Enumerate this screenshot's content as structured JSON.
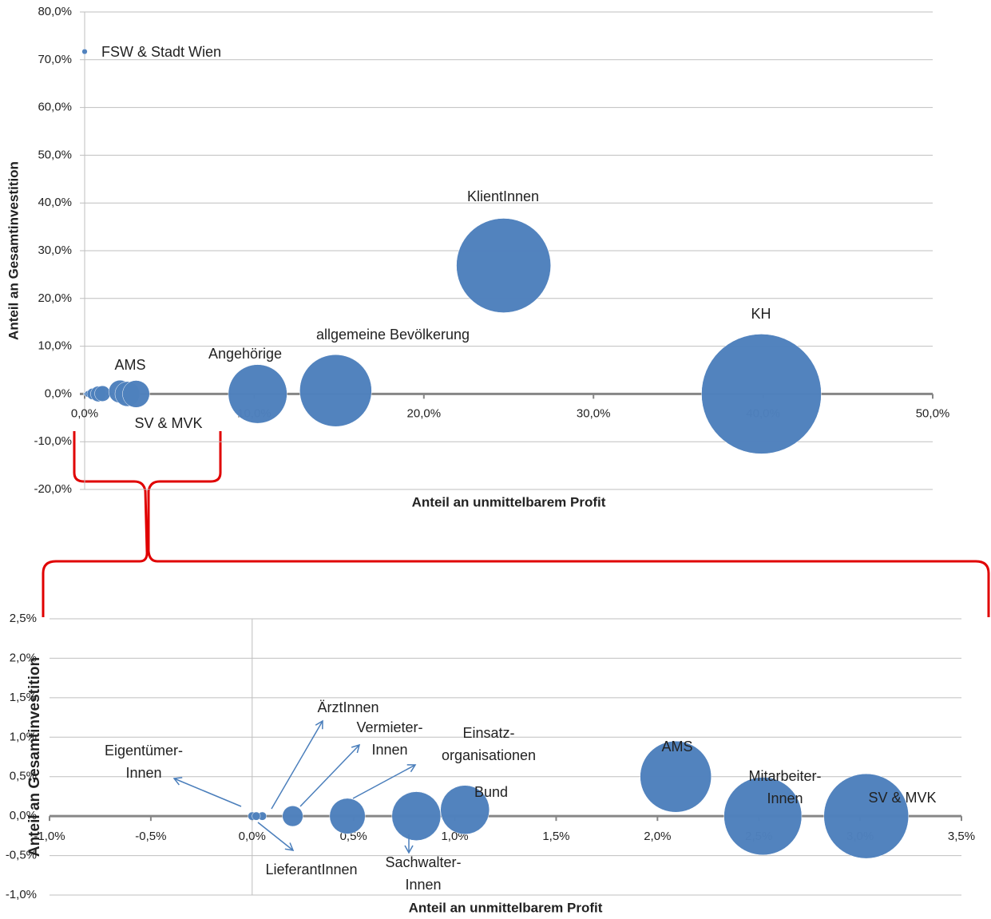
{
  "chart_data": [
    {
      "type": "bubble",
      "x_label": "Anteil an unmittelbarem Profit",
      "y_label": "Anteil an Gesamtinvestition",
      "color": "#4f81bd",
      "grid": true,
      "xlim": [
        0,
        50
      ],
      "ylim": [
        -20,
        80
      ],
      "xticks": [
        {
          "value": 0,
          "label": "0,0%"
        },
        {
          "value": 10,
          "label": "10,0%"
        },
        {
          "value": 20,
          "label": "20,0%"
        },
        {
          "value": 30,
          "label": "30,0%"
        },
        {
          "value": 40,
          "label": "40,0%"
        },
        {
          "value": 50,
          "label": "50,0%"
        }
      ],
      "yticks": [
        {
          "value": -20,
          "label": "-20,0%"
        },
        {
          "value": -10,
          "label": "-10,0%"
        },
        {
          "value": 0,
          "label": "0,0%"
        },
        {
          "value": 10,
          "label": "10,0%"
        },
        {
          "value": 20,
          "label": "20,0%"
        },
        {
          "value": 30,
          "label": "30,0%"
        },
        {
          "value": 40,
          "label": "40,0%"
        },
        {
          "value": 50,
          "label": "50,0%"
        },
        {
          "value": 60,
          "label": "60,0%"
        },
        {
          "value": 70,
          "label": "70,0%"
        },
        {
          "value": 80,
          "label": "80,0%"
        }
      ],
      "labels": [
        "FSW & Stadt Wien",
        null,
        null,
        null,
        null,
        null,
        null,
        null,
        "AMS",
        null,
        "SV & MVK",
        "Angehörige",
        "allgemeine Bevölkerung",
        "KlientInnen",
        "KH"
      ],
      "x": [
        0,
        0,
        0.05,
        0.02,
        0.2,
        0.47,
        0.81,
        1.05,
        2.09,
        2.52,
        3.03,
        10.2,
        14.8,
        24.7,
        39.9
      ],
      "values": [
        71.7,
        0,
        0,
        0,
        0,
        0,
        0,
        0.08,
        0.5,
        0,
        0,
        0,
        0.7,
        26.9,
        0
      ],
      "sizes": [
        0.2,
        0.05,
        0.05,
        0.05,
        0.3,
        0.9,
        1.7,
        1.7,
        3.6,
        4.3,
        5.1,
        24,
        36,
        62,
        100
      ]
    },
    {
      "type": "bubble",
      "x_label": "Anteil an unmittelbarem Profit",
      "y_label": "Anteil an Gesamtinvestition",
      "color": "#4f81bd",
      "grid": true,
      "xlim": [
        -1,
        3.5
      ],
      "ylim": [
        -1,
        2.5
      ],
      "xticks": [
        {
          "value": -1,
          "label": "-1,0%"
        },
        {
          "value": -0.5,
          "label": "-0,5%"
        },
        {
          "value": 0,
          "label": "0,0%"
        },
        {
          "value": 0.5,
          "label": "0,5%"
        },
        {
          "value": 1,
          "label": "1,0%"
        },
        {
          "value": 1.5,
          "label": "1,5%"
        },
        {
          "value": 2,
          "label": "2,0%"
        },
        {
          "value": 2.5,
          "label": "2,5%"
        },
        {
          "value": 3,
          "label": "3,0%"
        },
        {
          "value": 3.5,
          "label": "3,5%"
        }
      ],
      "yticks": [
        {
          "value": -1,
          "label": "-1,0%"
        },
        {
          "value": -0.5,
          "label": "-0,5%"
        },
        {
          "value": 0,
          "label": "0,0%"
        },
        {
          "value": 0.5,
          "label": "0,5%"
        },
        {
          "value": 1,
          "label": "1,0%"
        },
        {
          "value": 1.5,
          "label": "1,5%"
        },
        {
          "value": 2,
          "label": "2,0%"
        },
        {
          "value": 2.5,
          "label": "2,5%"
        }
      ],
      "labels": [
        [
          "Eigentümer-",
          "Innen"
        ],
        "ÄrztInnen",
        "LieferantInnen",
        [
          "Vermieter-",
          "Innen"
        ],
        [
          "Einsatz-",
          "organisationen"
        ],
        [
          "Sachwalter-",
          "Innen"
        ],
        "Bund",
        "AMS",
        [
          "Mitarbeiter-",
          "Innen"
        ],
        "SV & MVK"
      ],
      "x": [
        0,
        0.05,
        0.02,
        0.2,
        0.47,
        0.81,
        1.05,
        2.09,
        2.52,
        3.03
      ],
      "values": [
        0,
        0,
        0,
        0,
        0,
        0,
        0.08,
        0.5,
        0,
        0
      ],
      "sizes": [
        0.05,
        0.05,
        0.05,
        0.3,
        0.9,
        1.7,
        1.7,
        3.6,
        4.3,
        5.1
      ]
    }
  ]
}
